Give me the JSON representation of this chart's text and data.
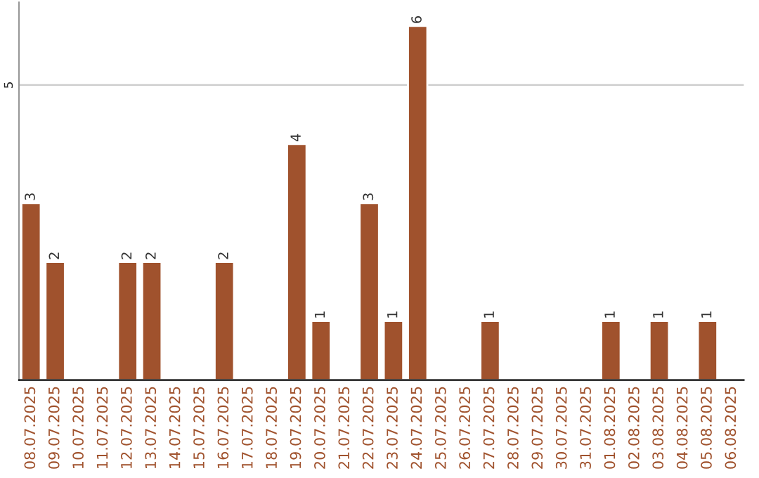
{
  "chart_data": {
    "type": "bar",
    "categories": [
      "08.07.2025",
      "09.07.2025",
      "10.07.2025",
      "11.07.2025",
      "12.07.2025",
      "13.07.2025",
      "14.07.2025",
      "15.07.2025",
      "16.07.2025",
      "17.07.2025",
      "18.07.2025",
      "19.07.2025",
      "20.07.2025",
      "21.07.2025",
      "22.07.2025",
      "23.07.2025",
      "24.07.2025",
      "25.07.2025",
      "26.07.2025",
      "27.07.2025",
      "28.07.2025",
      "29.07.2025",
      "30.07.2025",
      "31.07.2025",
      "01.08.2025",
      "02.08.2025",
      "03.08.2025",
      "04.08.2025",
      "05.08.2025",
      "06.08.2025"
    ],
    "values": [
      3,
      2,
      null,
      null,
      2,
      2,
      null,
      null,
      2,
      null,
      null,
      4,
      1,
      null,
      3,
      1,
      6,
      null,
      null,
      1,
      null,
      null,
      null,
      null,
      1,
      null,
      1,
      null,
      1,
      null
    ],
    "value_labels": [
      "3",
      "2",
      null,
      null,
      "2",
      "2",
      null,
      null,
      "2",
      null,
      null,
      "4",
      "1",
      null,
      "3",
      "1",
      "6",
      null,
      null,
      "1",
      null,
      null,
      null,
      null,
      "1",
      null,
      "1",
      null,
      "1",
      null
    ],
    "color": "#a0522d",
    "ylim": [
      0,
      6.4
    ],
    "yticks": [
      5
    ],
    "grid": "y"
  }
}
